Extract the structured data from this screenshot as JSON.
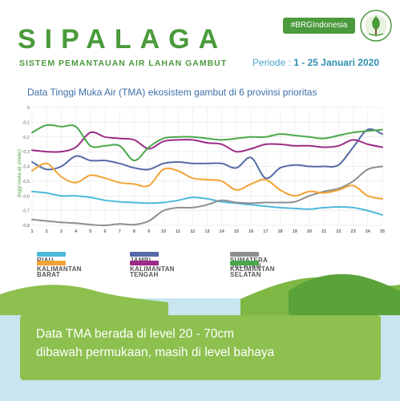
{
  "header": {
    "title": "SIPALAGA",
    "subtitle": "SISTEM PEMANTAUAN AIR LAHAN GAMBUT",
    "hashtag": "#BRGIndonesia",
    "period_label": "Periode :",
    "period_value": "1 - 25 Januari 2020"
  },
  "banner": {
    "line1": "Data TMA berada di level 20 - 70cm",
    "line2": "dibawah permukaan, masih di level bahaya"
  },
  "chart_data": {
    "type": "line",
    "title": "Data Tinggi Muka Air (TMA) ekosistem gambut di 6 provinsi prioritas",
    "xlabel": "",
    "ylabel": "tinggi muka air (meter)",
    "x": [
      "1",
      "2",
      "3",
      "4",
      "5",
      "6",
      "7",
      "8",
      "9",
      "10",
      "11",
      "12",
      "13",
      "14",
      "15",
      "16",
      "17",
      "18",
      "19",
      "20",
      "21",
      "22",
      "23",
      "24",
      "25"
    ],
    "ylim": [
      -0.8,
      0
    ],
    "yticks": [
      "0",
      "-0,1",
      "-0,2",
      "-0,3",
      "-0,4",
      "-0,5",
      "-0,6",
      "-0,7",
      "-0,8"
    ],
    "grid": true,
    "legend_position": "bottom",
    "series": [
      {
        "name": "RIAU",
        "color": "#4fb8da",
        "values": [
          -0.57,
          -0.58,
          -0.6,
          -0.6,
          -0.61,
          -0.63,
          -0.64,
          -0.645,
          -0.65,
          -0.645,
          -0.63,
          -0.61,
          -0.62,
          -0.64,
          -0.65,
          -0.66,
          -0.67,
          -0.68,
          -0.685,
          -0.69,
          -0.68,
          -0.675,
          -0.68,
          -0.7,
          -0.73
        ]
      },
      {
        "name": "JAMBI",
        "color": "#556aa7",
        "values": [
          -0.37,
          -0.42,
          -0.4,
          -0.33,
          -0.36,
          -0.36,
          -0.38,
          -0.41,
          -0.42,
          -0.38,
          -0.37,
          -0.38,
          -0.38,
          -0.38,
          -0.41,
          -0.34,
          -0.48,
          -0.41,
          -0.39,
          -0.4,
          -0.4,
          -0.39,
          -0.27,
          -0.15,
          -0.18
        ]
      },
      {
        "name": "SUMATERA SELATAN",
        "color": "#8e8e8e",
        "values": [
          -0.76,
          -0.77,
          -0.78,
          -0.785,
          -0.795,
          -0.8,
          -0.79,
          -0.795,
          -0.77,
          -0.7,
          -0.68,
          -0.68,
          -0.66,
          -0.63,
          -0.645,
          -0.65,
          -0.645,
          -0.645,
          -0.64,
          -0.6,
          -0.57,
          -0.55,
          -0.5,
          -0.42,
          -0.4
        ]
      },
      {
        "name": "KALIMANTAN BARAT",
        "color": "#f2a335",
        "values": [
          -0.43,
          -0.38,
          -0.47,
          -0.51,
          -0.46,
          -0.48,
          -0.51,
          -0.52,
          -0.53,
          -0.42,
          -0.43,
          -0.48,
          -0.49,
          -0.5,
          -0.56,
          -0.52,
          -0.49,
          -0.56,
          -0.6,
          -0.57,
          -0.58,
          -0.56,
          -0.53,
          -0.6,
          -0.62
        ]
      },
      {
        "name": "KALIMANTAN TENGAH",
        "color": "#9b2b87",
        "values": [
          -0.29,
          -0.3,
          -0.3,
          -0.27,
          -0.17,
          -0.2,
          -0.21,
          -0.22,
          -0.28,
          -0.23,
          -0.22,
          -0.22,
          -0.24,
          -0.25,
          -0.3,
          -0.28,
          -0.25,
          -0.25,
          -0.26,
          -0.26,
          -0.27,
          -0.26,
          -0.22,
          -0.25,
          -0.27
        ]
      },
      {
        "name": "KALIMANTAN SELATAN",
        "color": "#4aa84a",
        "values": [
          -0.17,
          -0.12,
          -0.13,
          -0.13,
          -0.26,
          -0.26,
          -0.26,
          -0.36,
          -0.27,
          -0.21,
          -0.2,
          -0.2,
          -0.21,
          -0.22,
          -0.21,
          -0.2,
          -0.2,
          -0.18,
          -0.19,
          -0.2,
          -0.21,
          -0.19,
          -0.17,
          -0.16,
          -0.15
        ]
      }
    ]
  }
}
